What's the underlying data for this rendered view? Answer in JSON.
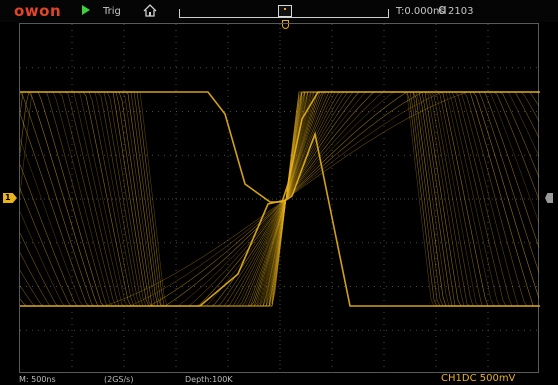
{
  "topbar": {
    "brand": "owon",
    "run_state_icon": "play-icon",
    "trigger_state": "Trig",
    "home_icon": "home-icon",
    "time_offset": "T:0.000ns",
    "trigger_icon": "edge-trigger-icon",
    "trigger_level": "2103"
  },
  "display": {
    "channel_marker": "1",
    "trace_color": "#e9b31a"
  },
  "status": {
    "timebase": "M: 500ns",
    "sample_rate": "(2GS/s)",
    "memory_depth": "Depth:100K",
    "ch1_setting": "CH1DC 500mV"
  },
  "colors": {
    "brand": "#e0452a",
    "run": "#3fd13c",
    "channel1": "#e9b31a",
    "grid": "#4a4a4a"
  }
}
